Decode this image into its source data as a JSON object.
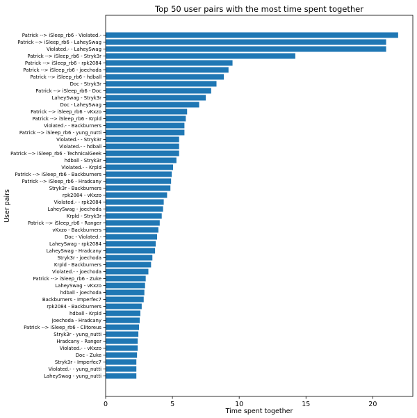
{
  "chart_data": {
    "type": "bar",
    "orientation": "horizontal",
    "title": "Top 50 user pairs with the most time spent together",
    "xlabel": "Time spent together",
    "ylabel": "User pairs",
    "xlim": [
      0,
      23
    ],
    "xticks": [
      0,
      5,
      10,
      15,
      20
    ],
    "grid": false,
    "bar_color": "#1f77b4",
    "categories": [
      "Patrick --> iSleep_rb6 - Violated.-",
      "Patrick --> iSleep_rb6 - LaheySwag",
      "Violated.- - LaheySwag",
      "Patrick --> iSleep_rb6 - Stryk3r",
      "Patrick --> iSleep_rb6 - rpk2084",
      "Patrick --> iSleep_rb6 - joechoda",
      "Patrick --> iSleep_rb6 - hdball",
      "Doc - Stryk3r",
      "Patrick --> iSleep_rb6 - Doc",
      "LaheySwag - Stryk3r",
      "Doc - LaheySwag",
      "Patrick --> iSleep_rb6 - vKxzo",
      "Patrick --> iSleep_rb6 - Krpld",
      "Violated.- - Backburners",
      "Patrick --> iSleep_rb6 - yung_nutti",
      "Violated.- - Stryk3r",
      "Violated.- - hdball",
      "Patrick --> iSleep_rb6 - TechnicalGeek",
      "hdball - Stryk3r",
      "Violated.- - Krpld",
      "Patrick --> iSleep_rb6 - Backburners",
      "Patrick --> iSleep_rb6 - Hradcany",
      "Stryk3r - Backburners",
      "rpk2084 - vKxzo",
      "Violated.- - rpk2084",
      "LaheySwag - joechoda",
      "Krpld - Stryk3r",
      "Patrick --> iSleep_rb6 - Ranger",
      "vKxzo - Backburners",
      "Doc - Violated.-",
      "LaheySwag - rpk2084",
      "LaheySwag - Hradcany",
      "Stryk3r - joechoda",
      "Krpld - Backburners",
      "Violated.- - joechoda",
      "Patrick --> iSleep_rb6 - Zuke",
      "LaheySwag - vKxzo",
      "hdball - joechoda",
      "Backburners - Imperfec7",
      "rpk2084 - Backburners",
      "hdball - Krpld",
      "joechoda - Hradcany",
      "Patrick --> iSleep_rb6 - Clitoreus",
      "Stryk3r - yung_nutti",
      "Hradcany - Ranger",
      "Violated.- - vKxzo",
      "Doc - Zuke",
      "Stryk3r - Imperfec7",
      "Violated.- - yung_nutti",
      "LaheySwag - yung_nutti"
    ],
    "values": [
      21.9,
      21.0,
      21.0,
      14.2,
      9.5,
      9.2,
      8.85,
      8.3,
      7.9,
      7.5,
      7.0,
      6.1,
      6.0,
      5.9,
      5.9,
      5.5,
      5.5,
      5.5,
      5.3,
      5.05,
      4.95,
      4.9,
      4.85,
      4.6,
      4.35,
      4.3,
      4.2,
      4.05,
      3.95,
      3.85,
      3.75,
      3.7,
      3.5,
      3.4,
      3.2,
      3.0,
      2.95,
      2.9,
      2.85,
      2.7,
      2.6,
      2.55,
      2.5,
      2.45,
      2.4,
      2.4,
      2.35,
      2.3,
      2.3,
      2.3
    ]
  }
}
